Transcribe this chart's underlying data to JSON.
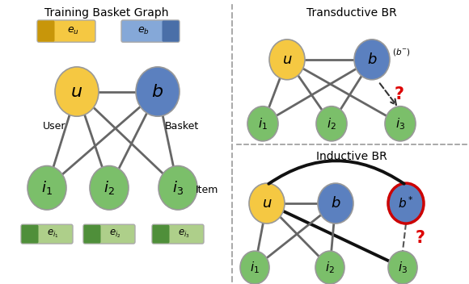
{
  "title_left": "Training Basket Graph",
  "title_right_top": "Transductive BR",
  "title_right_bot": "Inductive BR",
  "node_u_color": "#F5C842",
  "node_b_color": "#5B80BF",
  "node_i_color": "#7BBF6A",
  "edge_color": "#666666",
  "edge_lw": 2.0,
  "background": "#ffffff",
  "eu_light": "#F5C842",
  "eu_dark": "#C8960A",
  "eb_light": "#85A8D8",
  "eb_dark": "#4A6FA8",
  "ei_light": "#AECF8A",
  "ei_dark": "#4F8F3A",
  "red_color": "#DD0000",
  "div_color": "#999999",
  "arrow_dark": "#333333",
  "bstar_ring": "#CC0000",
  "thick_black": "#111111"
}
